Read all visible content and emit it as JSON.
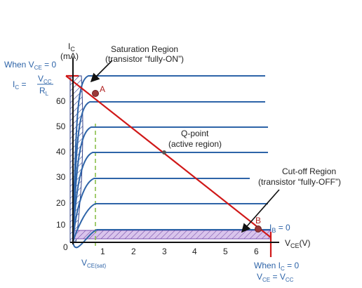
{
  "labels": {
    "y_axis_symbol": "I",
    "y_axis_sub": "C",
    "y_axis_unit": "(mA)",
    "x_axis_symbol": "V",
    "x_axis_sub": "CE",
    "x_axis_unit": "(V)",
    "origin": "0",
    "saturation_title": "Saturation Region",
    "saturation_sub": "(transistor “fully-ON”)",
    "qpoint_title": "Q-point",
    "qpoint_sub": "(active region)",
    "cutoff_title": "Cut-off Region",
    "cutoff_sub": "(transistor “fully-OFF”)",
    "point_a": "A",
    "point_b": "B",
    "ib_label": "I",
    "ib_sub": "B",
    "ib_value": " = 0",
    "vce_sat": "V",
    "vce_sat_sub": "CE(sat)",
    "when_vce_zero_a": "When V",
    "when_vce_zero_sub": "CE",
    "when_vce_zero_b": " = 0",
    "ic_eq_a": "I",
    "ic_eq_sub": "C",
    "ic_eq_b": " =",
    "ic_frac_num": "V",
    "ic_frac_num_sub": "CC",
    "ic_frac_den": "R",
    "ic_frac_den_sub": "L",
    "when_ic_zero": "When I",
    "when_ic_zero_sub": "C",
    "when_ic_zero_b": " = 0",
    "vce_eq_a": "V",
    "vce_eq_sub": "CE",
    "vce_eq_b": " = V",
    "vce_eq_sub2": "CC"
  },
  "x_ticks": [
    "1",
    "2",
    "3",
    "4",
    "5",
    "6"
  ],
  "y_ticks": [
    "10",
    "20",
    "30",
    "40",
    "50",
    "60"
  ],
  "colors": {
    "axis": "#111111",
    "curve": "#2e64a8",
    "load_line": "#d01818",
    "point": "#b03030",
    "sat_hatch": "#2e3f8a",
    "cutoff_fill": "#c8b0e0",
    "vce_sat_dash": "#8bbf4a",
    "label_blue": "#2e64a8"
  }
}
